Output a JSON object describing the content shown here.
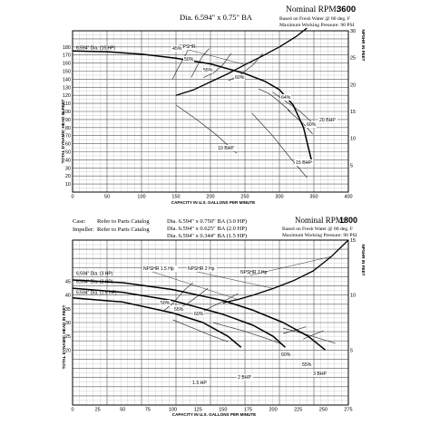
{
  "chart_data": [
    {
      "type": "line",
      "title_lines": [
        "Dia. 6.594\" x 0.75\" BA"
      ],
      "rpm_label": "Nominal RPM:",
      "rpm_value": "3600",
      "notes": [
        "Based on Fresh Water @ 80 deg. F",
        "Maximum Working Pressure: 90 PSI"
      ],
      "xlabel": "CAPACITY IN U.S. GALLONS PER MINUTE",
      "ylabel": "TOTAL DYNAMIC HEAD IN FEET",
      "y2label": "NPSHR IN FEET",
      "xlim": [
        0,
        400
      ],
      "ylim": [
        0,
        200
      ],
      "y2lim": [
        0,
        30
      ],
      "xticks": [
        "0",
        "50",
        "100",
        "150",
        "200",
        "250",
        "300",
        "350",
        "400"
      ],
      "yticks": [
        "10",
        "20",
        "30",
        "40",
        "50",
        "60",
        "70",
        "80",
        "90",
        "100",
        "110",
        "120",
        "130",
        "140",
        "150",
        "160",
        "170",
        "180"
      ],
      "y2ticks": [
        "5",
        "10",
        "15",
        "20",
        "25",
        "30"
      ],
      "series": [
        {
          "name": "6.594\" Dia. (15 HP)",
          "kind": "head",
          "x": [
            0,
            50,
            100,
            150,
            200,
            250,
            280,
            300,
            320,
            335,
            348
          ],
          "y": [
            175,
            174,
            171,
            166,
            159,
            147,
            137,
            127,
            108,
            80,
            34
          ]
        },
        {
          "name": "NPSHR",
          "kind": "npshr",
          "x": [
            150,
            175,
            200,
            225,
            250,
            275,
            300,
            325,
            340
          ],
          "y": [
            18,
            19,
            20.5,
            22,
            23.7,
            25.3,
            27,
            29,
            30.5
          ]
        }
      ],
      "efficiency_labels": [
        "45%",
        "50%",
        "55%",
        "60%",
        "64%",
        "60%"
      ],
      "efficiency_curves": [
        {
          "x": [
            145,
            152,
            165,
            172
          ],
          "y": [
            140,
            152,
            172,
            184
          ]
        },
        {
          "x": [
            172,
            178,
            188,
            198
          ],
          "y": [
            142,
            152,
            168,
            178
          ]
        },
        {
          "x": [
            190,
            205,
            218,
            230
          ],
          "y": [
            142,
            148,
            158,
            172
          ]
        },
        {
          "x": [
            226,
            244,
            262,
            276
          ],
          "y": [
            138,
            146,
            158,
            172
          ]
        },
        {
          "x": [
            270,
            285,
            300,
            316
          ],
          "y": [
            128,
            122,
            112,
            100
          ]
        },
        {
          "x": [
            312,
            325,
            338,
            348
          ],
          "y": [
            102,
            92,
            82,
            72
          ]
        }
      ],
      "bhp_labels": [
        "10 BHP",
        "15 BHP",
        "20 BHP"
      ],
      "bhp_curves": [
        {
          "x": [
            150,
            180,
            210,
            238
          ],
          "y": [
            108,
            90,
            70,
            48
          ]
        },
        {
          "x": [
            260,
            290,
            318,
            340
          ],
          "y": [
            98,
            70,
            40,
            18
          ]
        },
        {
          "x": [
            290,
            310,
            330,
            348
          ],
          "y": [
            124,
            112,
            100,
            86
          ]
        }
      ]
    },
    {
      "type": "line",
      "title_lines": [
        "Dia. 6.594\" x 0.750\" BA (3.0 HP)",
        "Dia. 6.594\" x 0.625\" BA (2.0 HP)",
        "Dia. 6.594\" x 0.344\" BA (1.5 HP)"
      ],
      "case_label": "Case:",
      "case_value": "Refer to Parts Catalog",
      "impeller_label": "Impeller:",
      "impeller_value": "Refer to Parts Catalog",
      "rpm_label": "Nominal RPM:",
      "rpm_value": "1800",
      "notes": [
        "Based on Fresh Water @ 80 deg. F",
        "Maximum Working Pressure: 90 PSI"
      ],
      "xlabel": "CAPACITY IN U.S. GALLONS PER MINUTE",
      "ylabel": "TOTAL DYNAMIC HEAD IN FEET",
      "y2label": "NPSHR IN FEET",
      "xlim": [
        0,
        275
      ],
      "ylim": [
        0,
        60
      ],
      "y2lim": [
        0,
        15
      ],
      "xticks": [
        "0",
        "25",
        "50",
        "75",
        "100",
        "125",
        "150",
        "175",
        "200",
        "225",
        "250",
        "275"
      ],
      "yticks": [
        "20",
        "25",
        "30",
        "35",
        "40",
        "45"
      ],
      "y2ticks": [
        "5",
        "10",
        "15"
      ],
      "series": [
        {
          "name": "6.594\" Dia. (3 HP)",
          "kind": "head",
          "x": [
            0,
            50,
            100,
            150,
            180,
            210,
            235,
            252
          ],
          "y": [
            45.5,
            44.5,
            42,
            38,
            34.5,
            30,
            25,
            20
          ]
        },
        {
          "name": "6.594\" Dia. (2 HP)",
          "kind": "head",
          "x": [
            0,
            50,
            100,
            150,
            180,
            200,
            212
          ],
          "y": [
            42.5,
            41,
            38,
            33,
            29,
            25,
            21
          ]
        },
        {
          "name": "6.594\" Dia. (1.5 HP)",
          "kind": "head",
          "x": [
            0,
            50,
            100,
            130,
            155,
            168
          ],
          "y": [
            39,
            37.5,
            33.5,
            30,
            25,
            21
          ]
        },
        {
          "name": "NPSHR 1.5 Hp",
          "kind": "npshr",
          "x": [
            150,
            165,
            180
          ],
          "y": [
            9.3,
            9.6,
            10
          ]
        },
        {
          "name": "NPSHR 2 Hp",
          "kind": "npshr",
          "x": [
            180,
            200,
            220
          ],
          "y": [
            10,
            10.6,
            11.3
          ]
        },
        {
          "name": "NPSHR 3 Hp",
          "kind": "npshr",
          "x": [
            220,
            240,
            258,
            275
          ],
          "y": [
            11.3,
            12.2,
            13.5,
            15
          ]
        }
      ],
      "efficiency_labels": [
        "50%",
        "55%",
        "60%",
        "60%",
        "55%"
      ],
      "efficiency_curves": [
        {
          "x": [
            90,
            100,
            112,
            120
          ],
          "y": [
            34,
            37,
            42,
            44.5
          ]
        },
        {
          "x": [
            105,
            115,
            126,
            135
          ],
          "y": [
            35,
            37,
            40,
            42.5
          ]
        },
        {
          "x": [
            125,
            140,
            152,
            165
          ],
          "y": [
            33,
            36,
            38,
            40.5
          ]
        },
        {
          "x": [
            210,
            220,
            233
          ],
          "y": [
            26,
            27,
            28.5
          ]
        },
        {
          "x": [
            230,
            240,
            250
          ],
          "y": [
            24,
            25.5,
            27
          ]
        }
      ],
      "bhp_labels": [
        "1.5 HP",
        "2 BHP",
        "3 BHP"
      ],
      "bhp_curves": [
        {
          "x": [
            100,
            120,
            140,
            155
          ],
          "y": [
            31,
            28,
            25,
            23
          ]
        },
        {
          "x": [
            140,
            170,
            195,
            210
          ],
          "y": [
            30,
            27,
            24,
            22
          ]
        },
        {
          "x": [
            210,
            230,
            248,
            262
          ],
          "y": [
            28,
            26,
            24,
            22.5
          ]
        }
      ]
    }
  ]
}
